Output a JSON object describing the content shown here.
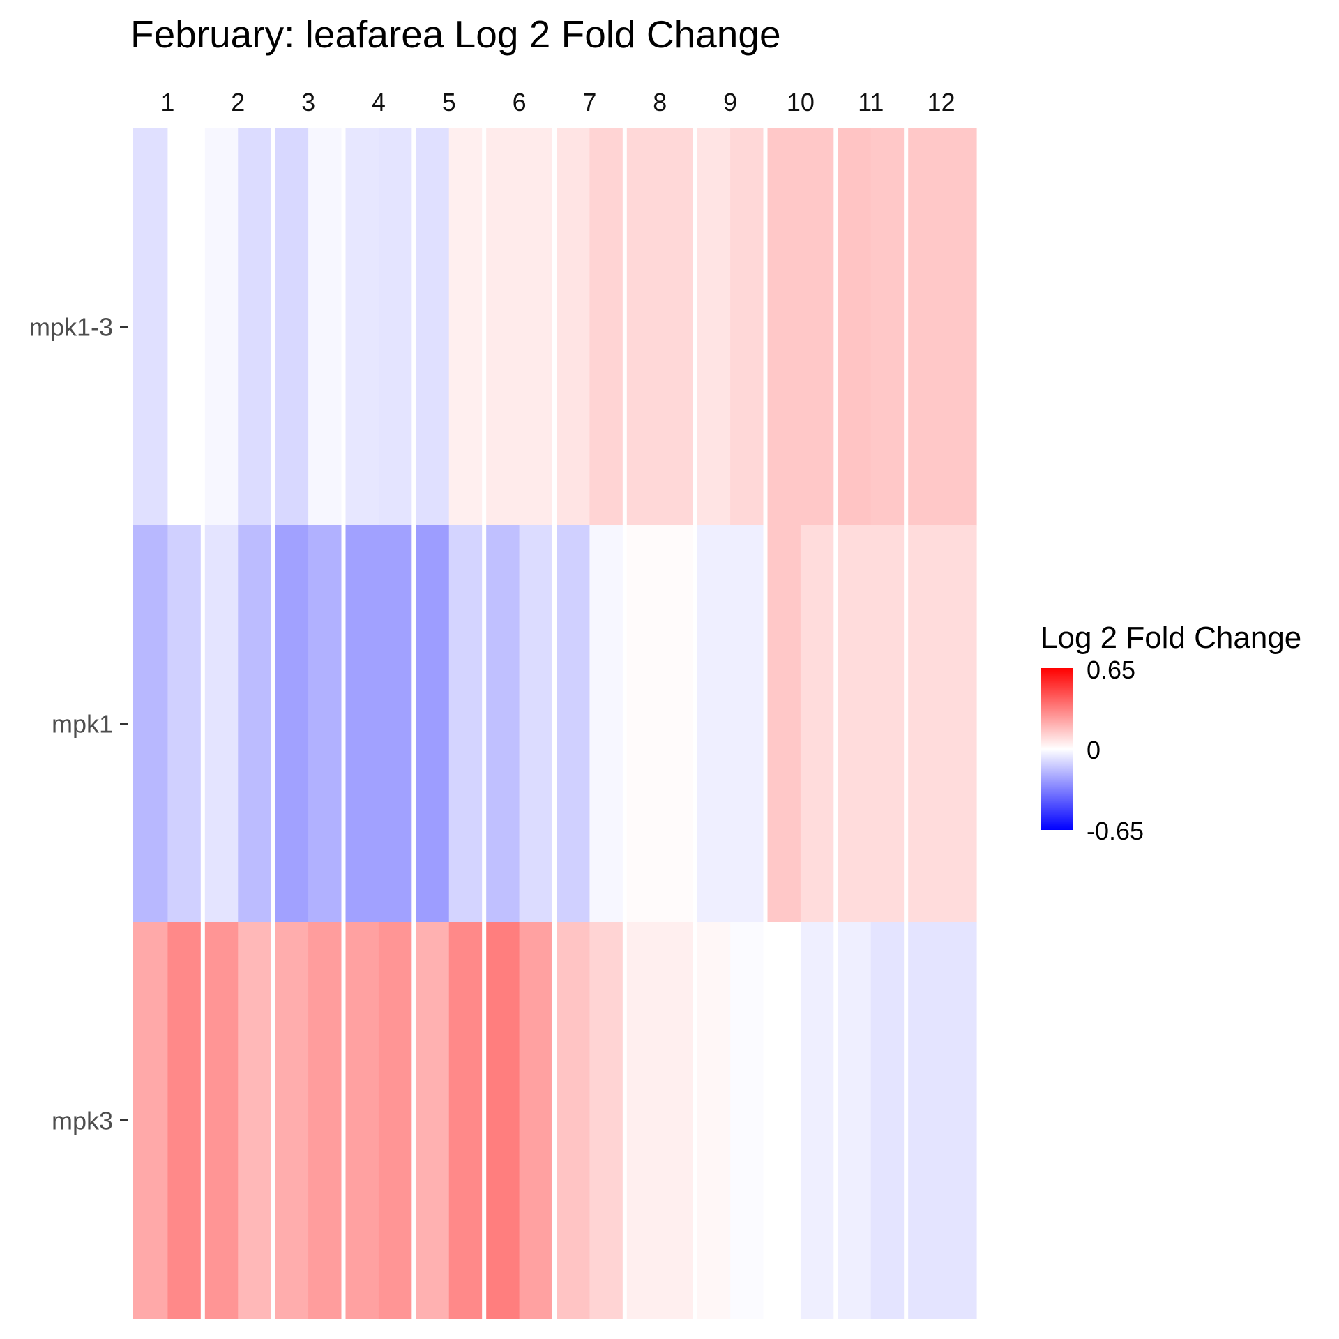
{
  "chart_data": {
    "type": "heatmap",
    "title": "February: leafarea Log 2 Fold Change",
    "columns": [
      "1",
      "2",
      "3",
      "4",
      "5",
      "6",
      "7",
      "8",
      "9",
      "10",
      "11",
      "12"
    ],
    "rows": [
      "mpk1-3",
      "mpk1",
      "mpk3"
    ],
    "sub_columns_per_column": 2,
    "values": {
      "mpk1-3": [
        [
          -0.08,
          0.0
        ],
        [
          -0.02,
          -0.09
        ],
        [
          -0.1,
          -0.02
        ],
        [
          -0.06,
          -0.07
        ],
        [
          -0.08,
          0.04
        ],
        [
          0.05,
          0.05
        ],
        [
          0.07,
          0.11
        ],
        [
          0.1,
          0.1
        ],
        [
          0.07,
          0.1
        ],
        [
          0.14,
          0.14
        ],
        [
          0.15,
          0.14
        ],
        [
          0.14,
          0.14
        ]
      ],
      "mpk1": [
        [
          -0.18,
          -0.12
        ],
        [
          -0.07,
          -0.17
        ],
        [
          -0.24,
          -0.2
        ],
        [
          -0.24,
          -0.24
        ],
        [
          -0.25,
          -0.11
        ],
        [
          -0.16,
          -0.09
        ],
        [
          -0.12,
          -0.02
        ],
        [
          0.01,
          0.01
        ],
        [
          -0.04,
          -0.04
        ],
        [
          0.14,
          0.09
        ],
        [
          0.09,
          0.09
        ],
        [
          0.09,
          0.09
        ]
      ],
      "mpk3": [
        [
          0.22,
          0.3
        ],
        [
          0.27,
          0.18
        ],
        [
          0.21,
          0.25
        ],
        [
          0.24,
          0.27
        ],
        [
          0.2,
          0.3
        ],
        [
          0.33,
          0.24
        ],
        [
          0.15,
          0.11
        ],
        [
          0.04,
          0.04
        ],
        [
          0.02,
          -0.01
        ],
        [
          0.0,
          -0.04
        ],
        [
          -0.04,
          -0.07
        ],
        [
          -0.07,
          -0.07
        ]
      ]
    },
    "legend": {
      "title": "Log 2 Fold Change",
      "labels": [
        "0.65",
        "0",
        "-0.65"
      ],
      "min": -0.65,
      "max": 0.65,
      "low_color": "#0000ff",
      "mid_color": "#ffffff",
      "high_color": "#ff0000",
      "placement": "right"
    },
    "grid": false
  }
}
